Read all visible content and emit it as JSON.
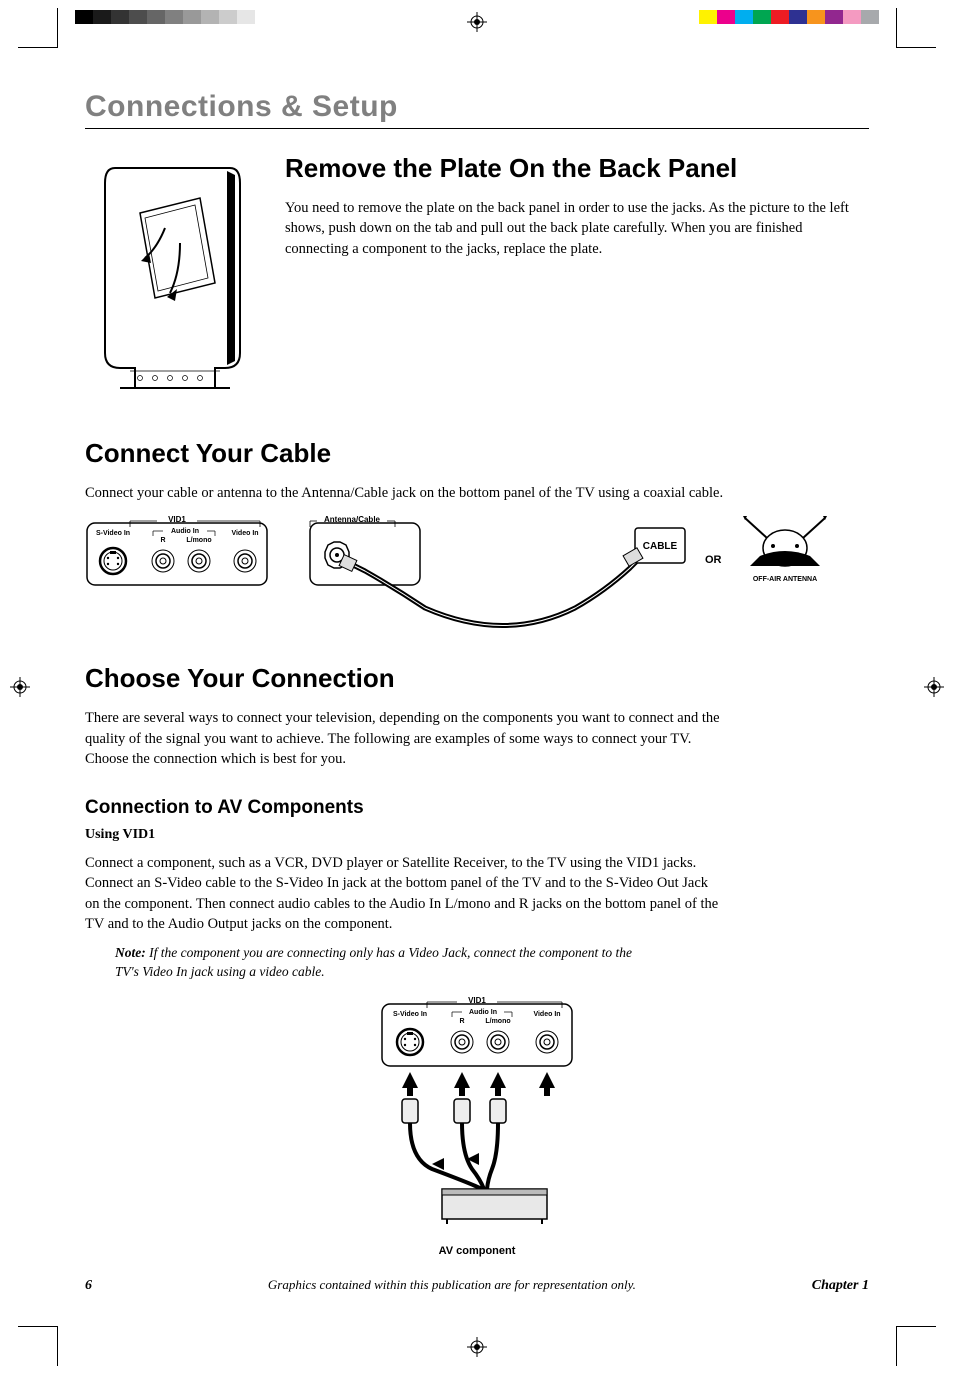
{
  "printer_swatches_gray": [
    "#000000",
    "#1a1a1a",
    "#333333",
    "#4d4d4d",
    "#666666",
    "#808080",
    "#999999",
    "#b3b3b3",
    "#cccccc",
    "#e6e6e6"
  ],
  "printer_swatches_color": [
    "#fff200",
    "#ec008c",
    "#00aeef",
    "#00a651",
    "#ed1c24",
    "#2e3192",
    "#f7941d",
    "#92278f",
    "#f49ac1",
    "#a7a9ac"
  ],
  "chapter_title": "Connections & Setup",
  "section1": {
    "title": "Remove the Plate On the Back Panel",
    "body": "You need to remove the plate on the back panel in order to use the jacks. As the picture to the left shows, push down on the tab and pull out the back plate carefully. When you are finished connecting a component to the jacks, replace the plate."
  },
  "section2": {
    "title": "Connect Your Cable",
    "body": "Connect your cable or antenna to the Antenna/Cable jack on the bottom panel of the TV using a coaxial cable."
  },
  "jack_labels": {
    "vid1": "VID1",
    "svideo_in": "S-Video In",
    "audio_in": "Audio In",
    "r": "R",
    "lmono": "L/mono",
    "video_in": "Video In",
    "antenna_cable": "Antenna/Cable",
    "cable": "CABLE",
    "or": "OR",
    "off_air": "OFF-AIR ANTENNA"
  },
  "section3": {
    "title": "Choose Your Connection",
    "body": "There are several ways to connect your television, depending on the components you want to connect and the quality of the signal you want to achieve. The following are examples of some ways to connect your TV. Choose the connection which is best for you."
  },
  "subsection": {
    "title": "Connection to AV Components",
    "using": "Using VID1",
    "body": "Connect a component, such as a VCR, DVD player or Satellite Receiver, to the TV using the VID1 jacks. Connect an S-Video cable to the S-Video In jack at the bottom panel of the TV and to the S-Video Out Jack on the component. Then connect audio cables to the Audio In L/mono and R jacks on the bottom panel of the TV and to the Audio Output jacks on the component.",
    "note_label": "Note:",
    "note": "If the component you are connecting only has a Video Jack, connect the component to the TV's Video In jack using a video cable.",
    "av_component": "AV component"
  },
  "footer": {
    "page": "6",
    "disclaimer": "Graphics contained within this publication are for representation only.",
    "chapter": "Chapter 1"
  }
}
